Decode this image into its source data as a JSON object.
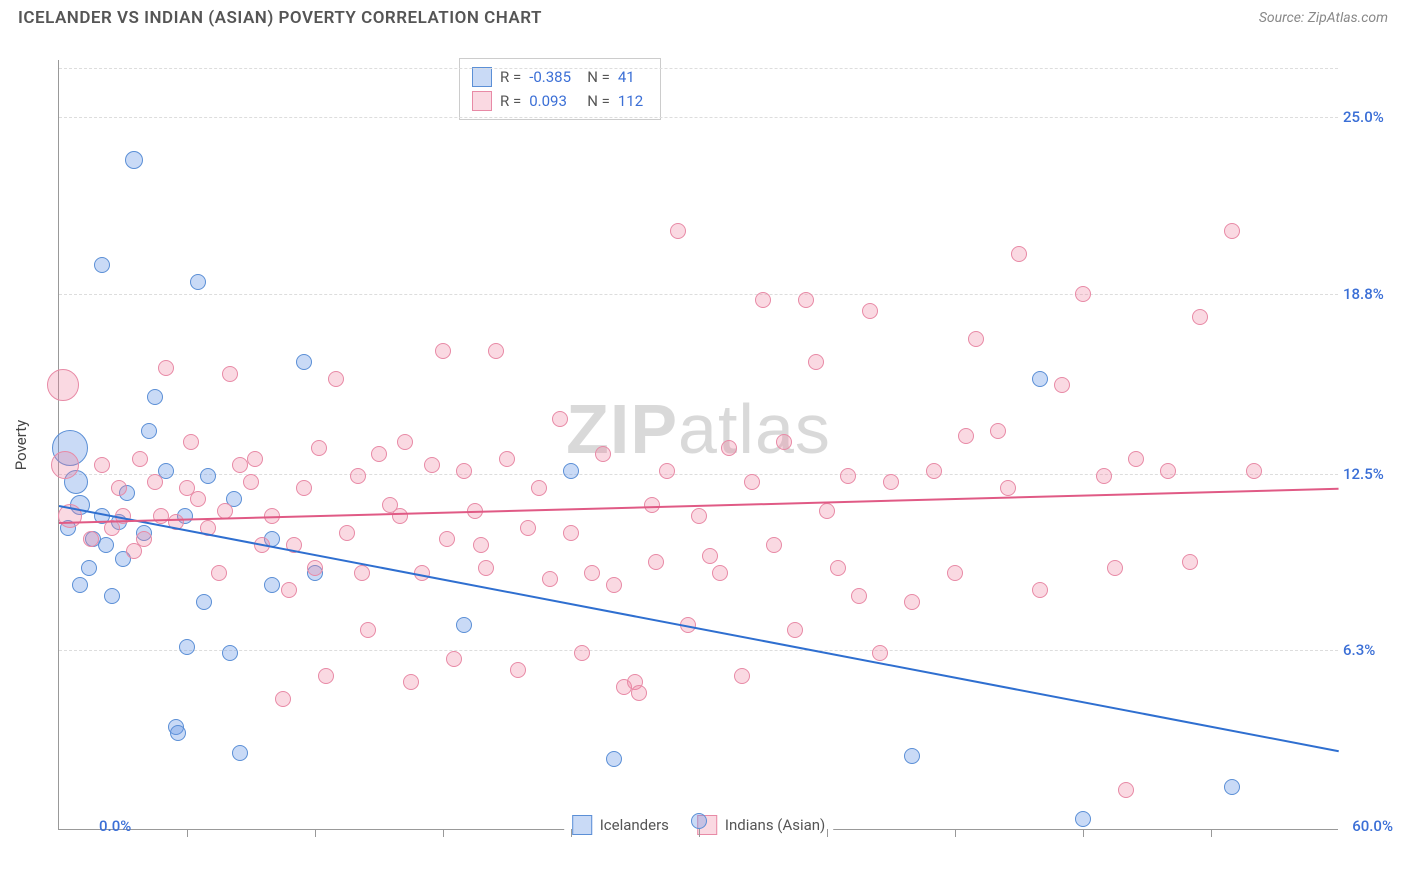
{
  "header": {
    "title": "ICELANDER VS INDIAN (ASIAN) POVERTY CORRELATION CHART",
    "source": "Source: ZipAtlas.com"
  },
  "watermark": {
    "part1": "ZIP",
    "part2": "atlas"
  },
  "chart": {
    "type": "scatter",
    "ylabel": "Poverty",
    "background_color": "#ffffff",
    "grid_color": "#dddddd",
    "axis_color": "#999999",
    "xlim": [
      0,
      60
    ],
    "ylim": [
      0,
      27
    ],
    "x_axis_labels": {
      "min": "0.0%",
      "max": "60.0%"
    },
    "y_ticks": [
      {
        "value": 6.3,
        "label": "6.3%"
      },
      {
        "value": 12.5,
        "label": "12.5%"
      },
      {
        "value": 18.8,
        "label": "18.8%"
      },
      {
        "value": 25.0,
        "label": "25.0%"
      }
    ],
    "x_tick_positions": [
      6,
      12,
      18,
      24,
      30,
      36,
      42,
      48,
      54
    ],
    "series": [
      {
        "name": "Icelanders",
        "fill_color": "rgba(100,150,230,0.35)",
        "stroke_color": "#5b8fd6",
        "trend_color": "#2f6fd0",
        "R": "-0.385",
        "N": "41",
        "trend": {
          "x1": 0,
          "y1": 11.4,
          "x2": 60,
          "y2": 2.8
        },
        "points": [
          {
            "x": 3.5,
            "y": 23.5,
            "r": 9
          },
          {
            "x": 2,
            "y": 19.8,
            "r": 8
          },
          {
            "x": 6.5,
            "y": 19.2,
            "r": 8
          },
          {
            "x": 11.5,
            "y": 16.4,
            "r": 8
          },
          {
            "x": 4.5,
            "y": 15.2,
            "r": 8
          },
          {
            "x": 0.5,
            "y": 13.4,
            "r": 18
          },
          {
            "x": 0.8,
            "y": 12.2,
            "r": 12
          },
          {
            "x": 1,
            "y": 11.4,
            "r": 10
          },
          {
            "x": 2,
            "y": 11,
            "r": 8
          },
          {
            "x": 5,
            "y": 12.6,
            "r": 8
          },
          {
            "x": 7,
            "y": 12.4,
            "r": 8
          },
          {
            "x": 2.2,
            "y": 10,
            "r": 8
          },
          {
            "x": 1.4,
            "y": 9.2,
            "r": 8
          },
          {
            "x": 3,
            "y": 9.5,
            "r": 8
          },
          {
            "x": 2.5,
            "y": 8.2,
            "r": 8
          },
          {
            "x": 4,
            "y": 10.4,
            "r": 8
          },
          {
            "x": 1,
            "y": 8.6,
            "r": 8
          },
          {
            "x": 10,
            "y": 10.2,
            "r": 8
          },
          {
            "x": 6,
            "y": 6.4,
            "r": 8
          },
          {
            "x": 8,
            "y": 6.2,
            "r": 8
          },
          {
            "x": 5.5,
            "y": 3.6,
            "r": 8
          },
          {
            "x": 5.6,
            "y": 3.4,
            "r": 8
          },
          {
            "x": 8.5,
            "y": 2.7,
            "r": 8
          },
          {
            "x": 24,
            "y": 12.6,
            "r": 8
          },
          {
            "x": 19,
            "y": 7.2,
            "r": 8
          },
          {
            "x": 26,
            "y": 2.5,
            "r": 8
          },
          {
            "x": 30,
            "y": 0.3,
            "r": 8
          },
          {
            "x": 40,
            "y": 2.6,
            "r": 8
          },
          {
            "x": 48,
            "y": 0.4,
            "r": 8
          },
          {
            "x": 55,
            "y": 1.5,
            "r": 8
          },
          {
            "x": 46,
            "y": 15.8,
            "r": 8
          },
          {
            "x": 10,
            "y": 8.6,
            "r": 8
          },
          {
            "x": 12,
            "y": 9,
            "r": 8
          },
          {
            "x": 3.2,
            "y": 11.8,
            "r": 8
          },
          {
            "x": 2.8,
            "y": 10.8,
            "r": 8
          },
          {
            "x": 1.6,
            "y": 10.2,
            "r": 8
          },
          {
            "x": 5.9,
            "y": 11,
            "r": 8
          },
          {
            "x": 8.2,
            "y": 11.6,
            "r": 8
          },
          {
            "x": 4.2,
            "y": 14,
            "r": 8
          },
          {
            "x": 6.8,
            "y": 8,
            "r": 8
          },
          {
            "x": 0.4,
            "y": 10.6,
            "r": 8
          }
        ]
      },
      {
        "name": "Indians (Asian)",
        "fill_color": "rgba(240,130,160,0.30)",
        "stroke_color": "#e88aa6",
        "trend_color": "#e05a85",
        "R": "0.093",
        "N": "112",
        "trend": {
          "x1": 0,
          "y1": 10.8,
          "x2": 60,
          "y2": 12.0
        },
        "points": [
          {
            "x": 0.2,
            "y": 15.6,
            "r": 16
          },
          {
            "x": 0.3,
            "y": 12.8,
            "r": 14
          },
          {
            "x": 0.5,
            "y": 11,
            "r": 12
          },
          {
            "x": 2,
            "y": 12.8,
            "r": 8
          },
          {
            "x": 3,
            "y": 11,
            "r": 8
          },
          {
            "x": 4,
            "y": 10.2,
            "r": 8
          },
          {
            "x": 5,
            "y": 16.2,
            "r": 8
          },
          {
            "x": 6,
            "y": 12,
            "r": 8
          },
          {
            "x": 7,
            "y": 10.6,
            "r": 8
          },
          {
            "x": 8,
            "y": 16,
            "r": 8
          },
          {
            "x": 9,
            "y": 12.2,
            "r": 8
          },
          {
            "x": 10,
            "y": 11,
            "r": 8
          },
          {
            "x": 11,
            "y": 10,
            "r": 8
          },
          {
            "x": 12,
            "y": 9.2,
            "r": 8
          },
          {
            "x": 13,
            "y": 15.8,
            "r": 8
          },
          {
            "x": 14,
            "y": 12.4,
            "r": 8
          },
          {
            "x": 15,
            "y": 13.2,
            "r": 8
          },
          {
            "x": 16,
            "y": 11,
            "r": 8
          },
          {
            "x": 17,
            "y": 9,
            "r": 8
          },
          {
            "x": 18,
            "y": 16.8,
            "r": 8
          },
          {
            "x": 19,
            "y": 12.6,
            "r": 8
          },
          {
            "x": 19.5,
            "y": 11.2,
            "r": 8
          },
          {
            "x": 20,
            "y": 9.2,
            "r": 8
          },
          {
            "x": 20.5,
            "y": 16.8,
            "r": 8
          },
          {
            "x": 21,
            "y": 13,
            "r": 8
          },
          {
            "x": 22,
            "y": 10.6,
            "r": 8
          },
          {
            "x": 23,
            "y": 8.8,
            "r": 8
          },
          {
            "x": 24,
            "y": 10.4,
            "r": 8
          },
          {
            "x": 25,
            "y": 9,
            "r": 8
          },
          {
            "x": 26,
            "y": 8.6,
            "r": 8
          },
          {
            "x": 26.5,
            "y": 5,
            "r": 8
          },
          {
            "x": 27,
            "y": 5.2,
            "r": 8
          },
          {
            "x": 27.2,
            "y": 4.8,
            "r": 8
          },
          {
            "x": 28,
            "y": 9.4,
            "r": 8
          },
          {
            "x": 29,
            "y": 21,
            "r": 8
          },
          {
            "x": 30,
            "y": 11,
            "r": 8
          },
          {
            "x": 31,
            "y": 9,
            "r": 8
          },
          {
            "x": 31.4,
            "y": 13.4,
            "r": 8
          },
          {
            "x": 32,
            "y": 5.4,
            "r": 8
          },
          {
            "x": 33,
            "y": 18.6,
            "r": 8
          },
          {
            "x": 34,
            "y": 13.6,
            "r": 8
          },
          {
            "x": 35,
            "y": 18.6,
            "r": 8
          },
          {
            "x": 35.5,
            "y": 16.4,
            "r": 8
          },
          {
            "x": 36,
            "y": 11.2,
            "r": 8
          },
          {
            "x": 37,
            "y": 12.4,
            "r": 8
          },
          {
            "x": 37.5,
            "y": 8.2,
            "r": 8
          },
          {
            "x": 38,
            "y": 18.2,
            "r": 8
          },
          {
            "x": 39,
            "y": 12.2,
            "r": 8
          },
          {
            "x": 40,
            "y": 8,
            "r": 8
          },
          {
            "x": 41,
            "y": 12.6,
            "r": 8
          },
          {
            "x": 42,
            "y": 9,
            "r": 8
          },
          {
            "x": 43,
            "y": 17.2,
            "r": 8
          },
          {
            "x": 44,
            "y": 14,
            "r": 8
          },
          {
            "x": 45,
            "y": 20.2,
            "r": 8
          },
          {
            "x": 46,
            "y": 8.4,
            "r": 8
          },
          {
            "x": 47,
            "y": 15.6,
            "r": 8
          },
          {
            "x": 48,
            "y": 18.8,
            "r": 8
          },
          {
            "x": 49,
            "y": 12.4,
            "r": 8
          },
          {
            "x": 49.5,
            "y": 9.2,
            "r": 8
          },
          {
            "x": 52,
            "y": 12.6,
            "r": 8
          },
          {
            "x": 53,
            "y": 9.4,
            "r": 8
          },
          {
            "x": 55,
            "y": 21,
            "r": 8
          },
          {
            "x": 56,
            "y": 12.6,
            "r": 8
          },
          {
            "x": 50,
            "y": 1.4,
            "r": 8
          },
          {
            "x": 34.5,
            "y": 7,
            "r": 8
          },
          {
            "x": 24.5,
            "y": 6.2,
            "r": 8
          },
          {
            "x": 21.5,
            "y": 5.6,
            "r": 8
          },
          {
            "x": 18.5,
            "y": 6,
            "r": 8
          },
          {
            "x": 16.5,
            "y": 5.2,
            "r": 8
          },
          {
            "x": 14.5,
            "y": 7,
            "r": 8
          },
          {
            "x": 12.5,
            "y": 5.4,
            "r": 8
          },
          {
            "x": 10.5,
            "y": 4.6,
            "r": 8
          },
          {
            "x": 2.5,
            "y": 10.6,
            "r": 8
          },
          {
            "x": 3.5,
            "y": 9.8,
            "r": 8
          },
          {
            "x": 4.5,
            "y": 12.2,
            "r": 8
          },
          {
            "x": 5.5,
            "y": 10.8,
            "r": 8
          },
          {
            "x": 6.5,
            "y": 11.6,
            "r": 8
          },
          {
            "x": 7.5,
            "y": 9,
            "r": 8
          },
          {
            "x": 8.5,
            "y": 12.8,
            "r": 8
          },
          {
            "x": 9.5,
            "y": 10,
            "r": 8
          },
          {
            "x": 11.5,
            "y": 12,
            "r": 8
          },
          {
            "x": 13.5,
            "y": 10.4,
            "r": 8
          },
          {
            "x": 15.5,
            "y": 11.4,
            "r": 8
          },
          {
            "x": 17.5,
            "y": 12.8,
            "r": 8
          },
          {
            "x": 18.2,
            "y": 10.2,
            "r": 8
          },
          {
            "x": 22.5,
            "y": 12,
            "r": 8
          },
          {
            "x": 23.5,
            "y": 14.4,
            "r": 8
          },
          {
            "x": 28.5,
            "y": 12.6,
            "r": 8
          },
          {
            "x": 29.5,
            "y": 7.2,
            "r": 8
          },
          {
            "x": 33.5,
            "y": 10,
            "r": 8
          },
          {
            "x": 36.5,
            "y": 9.2,
            "r": 8
          },
          {
            "x": 38.5,
            "y": 6.2,
            "r": 8
          },
          {
            "x": 42.5,
            "y": 13.8,
            "r": 8
          },
          {
            "x": 44.5,
            "y": 12,
            "r": 8
          },
          {
            "x": 50.5,
            "y": 13,
            "r": 8
          },
          {
            "x": 53.5,
            "y": 18,
            "r": 8
          },
          {
            "x": 1.5,
            "y": 10.2,
            "r": 8
          },
          {
            "x": 2.8,
            "y": 12,
            "r": 8
          },
          {
            "x": 3.8,
            "y": 13,
            "r": 8
          },
          {
            "x": 4.8,
            "y": 11,
            "r": 8
          },
          {
            "x": 6.2,
            "y": 13.6,
            "r": 8
          },
          {
            "x": 7.8,
            "y": 11.2,
            "r": 8
          },
          {
            "x": 9.2,
            "y": 13,
            "r": 8
          },
          {
            "x": 10.8,
            "y": 8.4,
            "r": 8
          },
          {
            "x": 12.2,
            "y": 13.4,
            "r": 8
          },
          {
            "x": 14.2,
            "y": 9,
            "r": 8
          },
          {
            "x": 16.2,
            "y": 13.6,
            "r": 8
          },
          {
            "x": 19.8,
            "y": 10,
            "r": 8
          },
          {
            "x": 25.5,
            "y": 13.2,
            "r": 8
          },
          {
            "x": 27.8,
            "y": 11.4,
            "r": 8
          },
          {
            "x": 30.5,
            "y": 9.6,
            "r": 8
          },
          {
            "x": 32.5,
            "y": 12.2,
            "r": 8
          }
        ]
      }
    ],
    "bottom_legend": [
      {
        "label": "Icelanders",
        "fill": "rgba(100,150,230,0.35)",
        "stroke": "#5b8fd6"
      },
      {
        "label": "Indians (Asian)",
        "fill": "rgba(240,130,160,0.30)",
        "stroke": "#e88aa6"
      }
    ]
  }
}
